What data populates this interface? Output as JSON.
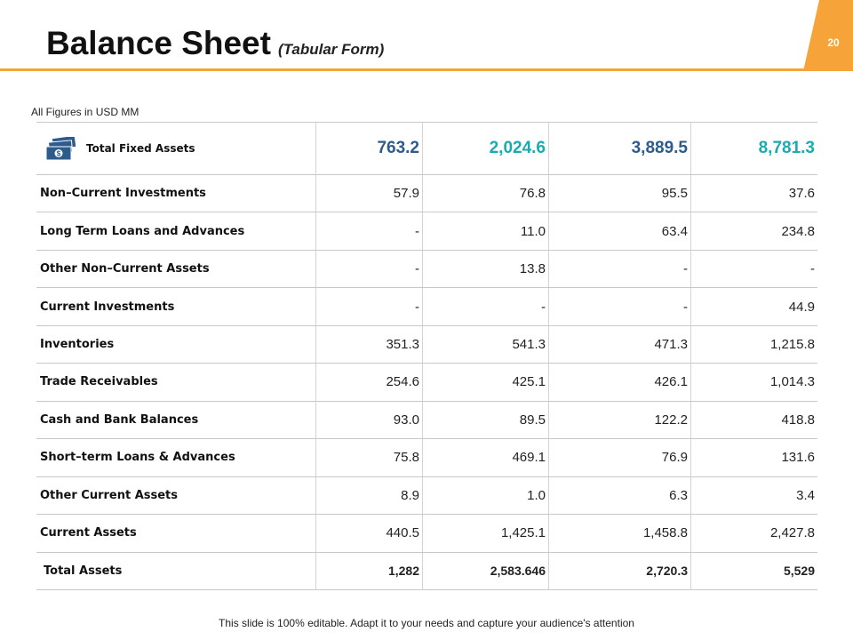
{
  "header": {
    "title": "Balance Sheet",
    "subtitle": "(Tabular Form)",
    "page_number": "20"
  },
  "note": "All Figures in USD MM",
  "table": {
    "head": {
      "label": "Total  Fixed Assets",
      "cells": [
        "763.2",
        "2,024.6",
        "3,889.5",
        "8,781.3"
      ]
    },
    "rows": [
      {
        "label": "Non–Current Investments",
        "cells": [
          "57.9",
          "76.8",
          "95.5",
          "37.6"
        ]
      },
      {
        "label": "Long Term Loans and Advances",
        "cells": [
          "-",
          "11.0",
          "63.4",
          "234.8"
        ]
      },
      {
        "label": "Other Non–Current Assets",
        "cells": [
          "-",
          "13.8",
          "-",
          "-"
        ]
      },
      {
        "label": "Current Investments",
        "cells": [
          "-",
          "-",
          "-",
          "44.9"
        ]
      },
      {
        "label": "Inventories",
        "cells": [
          "351.3",
          "541.3",
          "471.3",
          "1,215.8"
        ]
      },
      {
        "label": "Trade Receivables",
        "cells": [
          "254.6",
          "425.1",
          "426.1",
          "1,014.3"
        ]
      },
      {
        "label": "Cash and Bank Balances",
        "cells": [
          "93.0",
          "89.5",
          "122.2",
          "418.8"
        ]
      },
      {
        "label": "Short–term Loans & Advances",
        "cells": [
          "75.8",
          "469.1",
          "76.9",
          "131.6"
        ]
      },
      {
        "label": "Other Current Assets",
        "cells": [
          "8.9",
          "1.0",
          "6.3",
          "3.4"
        ]
      },
      {
        "label": "Current Assets",
        "cells": [
          "440.5",
          "1,425.1",
          "1,458.8",
          "2,427.8"
        ]
      },
      {
        "label": "Total Assets",
        "cells": [
          "1,282",
          "2,583.646",
          "2,720.3",
          "5,529"
        ]
      }
    ]
  },
  "footer": "This slide is 100% editable. Adapt it to your needs and capture your audience's attention"
}
